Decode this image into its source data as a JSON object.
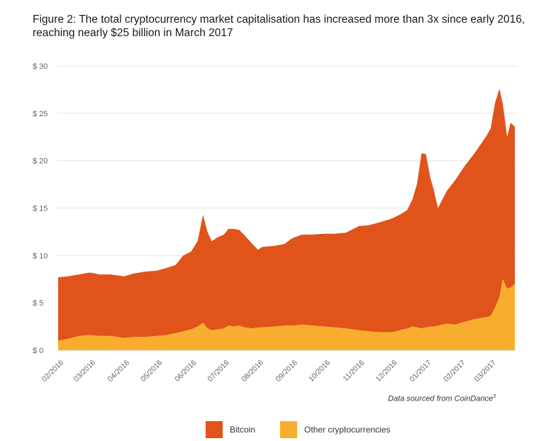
{
  "title_line1": "Figure 2: The total cryptocurrency market capitalisation has increased more than 3x since early 2016,",
  "title_line2": "reaching nearly $25 billion in March 2017",
  "source_text": "Data sourced from CoinDance",
  "source_sup": "3",
  "colors": {
    "bitcoin": "#e0531a",
    "other": "#f9ad2e",
    "grid": "#e6e6e6"
  },
  "chart_data": {
    "type": "area",
    "stacked": true,
    "ylim": [
      0,
      30
    ],
    "yticks": [
      0,
      5,
      10,
      15,
      20,
      25,
      30
    ],
    "ytick_labels": [
      "$ 0",
      "$ 5",
      "$ 10",
      "$ 15",
      "$ 20",
      "$ 25",
      "$ 30"
    ],
    "xlim": [
      "2016-02-01",
      "2017-03-23"
    ],
    "xtick_labels": [
      "02/2016",
      "03/2016",
      "04/2016",
      "05/2016",
      "06/2016",
      "07/2016",
      "08/2016",
      "09/2016",
      "10/2016",
      "11/2016",
      "12/2016",
      "01/2017",
      "02/2017",
      "03/2017"
    ],
    "xtick_dates": [
      "2016-02-01",
      "2016-03-01",
      "2016-04-01",
      "2016-05-01",
      "2016-06-01",
      "2016-07-01",
      "2016-08-01",
      "2016-09-01",
      "2016-10-01",
      "2016-11-01",
      "2016-12-01",
      "2017-01-01",
      "2017-02-01",
      "2017-03-01"
    ],
    "grid": true,
    "legend_position": "bottom",
    "x": [
      "2016-02-01",
      "2016-02-10",
      "2016-02-20",
      "2016-03-01",
      "2016-03-10",
      "2016-03-20",
      "2016-04-01",
      "2016-04-10",
      "2016-04-20",
      "2016-05-01",
      "2016-05-10",
      "2016-05-18",
      "2016-05-25",
      "2016-06-01",
      "2016-06-07",
      "2016-06-12",
      "2016-06-16",
      "2016-06-20",
      "2016-06-25",
      "2016-07-01",
      "2016-07-05",
      "2016-07-10",
      "2016-07-15",
      "2016-07-20",
      "2016-07-27",
      "2016-08-01",
      "2016-08-05",
      "2016-08-15",
      "2016-08-25",
      "2016-09-01",
      "2016-09-10",
      "2016-09-20",
      "2016-10-01",
      "2016-10-10",
      "2016-10-20",
      "2016-11-01",
      "2016-11-10",
      "2016-11-20",
      "2016-12-01",
      "2016-12-08",
      "2016-12-15",
      "2016-12-20",
      "2016-12-24",
      "2016-12-28",
      "2017-01-01",
      "2017-01-05",
      "2017-01-08",
      "2017-01-12",
      "2017-01-20",
      "2017-01-28",
      "2017-02-05",
      "2017-02-15",
      "2017-02-25",
      "2017-03-01",
      "2017-03-05",
      "2017-03-09",
      "2017-03-12",
      "2017-03-16",
      "2017-03-19",
      "2017-03-23"
    ],
    "series": [
      {
        "name": "Bitcoin",
        "values": [
          6.7,
          6.6,
          6.5,
          6.6,
          6.5,
          6.5,
          6.5,
          6.7,
          6.9,
          6.9,
          7.1,
          7.2,
          8.0,
          8.2,
          9.0,
          11.4,
          10.2,
          9.4,
          9.7,
          9.9,
          10.2,
          10.3,
          10.1,
          9.7,
          8.9,
          8.2,
          8.5,
          8.5,
          8.6,
          9.2,
          9.5,
          9.6,
          9.8,
          9.9,
          10.1,
          11.0,
          11.2,
          11.6,
          12.0,
          12.2,
          12.5,
          13.5,
          15.2,
          18.5,
          18.3,
          15.7,
          14.5,
          12.4,
          14.0,
          15.3,
          16.4,
          17.6,
          19.1,
          19.8,
          21.6,
          22.0,
          18.5,
          16.0,
          17.4,
          16.6
        ]
      },
      {
        "name": "Other cryptocurrencies",
        "values": [
          1.0,
          1.2,
          1.5,
          1.6,
          1.5,
          1.5,
          1.3,
          1.4,
          1.4,
          1.5,
          1.6,
          1.8,
          2.0,
          2.2,
          2.5,
          2.9,
          2.3,
          2.1,
          2.2,
          2.3,
          2.6,
          2.5,
          2.6,
          2.4,
          2.3,
          2.4,
          2.4,
          2.5,
          2.6,
          2.6,
          2.7,
          2.6,
          2.5,
          2.4,
          2.3,
          2.1,
          2.0,
          1.9,
          1.9,
          2.1,
          2.3,
          2.5,
          2.4,
          2.3,
          2.4,
          2.5,
          2.5,
          2.6,
          2.8,
          2.7,
          3.0,
          3.3,
          3.5,
          3.6,
          4.5,
          5.6,
          7.5,
          6.5,
          6.6,
          7.0
        ]
      }
    ]
  },
  "legend": [
    {
      "label": "Bitcoin",
      "color": "#e0531a"
    },
    {
      "label": "Other cryptocurrencies",
      "color": "#f9ad2e"
    }
  ]
}
